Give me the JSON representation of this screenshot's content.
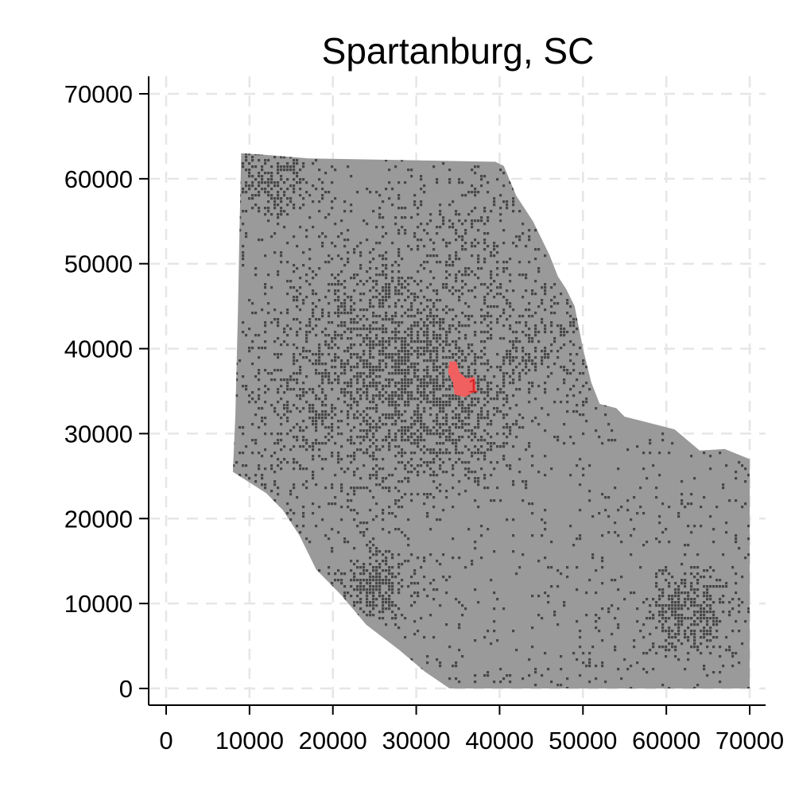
{
  "chart_data": {
    "type": "scatter",
    "title": "Spartanburg, SC",
    "xlabel": "",
    "ylabel": "",
    "xlim": [
      -2000,
      71000
    ],
    "ylim": [
      -2000,
      72000
    ],
    "x_ticks": [
      0,
      10000,
      20000,
      30000,
      40000,
      50000,
      60000,
      70000
    ],
    "y_ticks": [
      0,
      10000,
      20000,
      30000,
      40000,
      50000,
      60000,
      70000
    ],
    "x_tick_labels": [
      "0",
      "10000",
      "20000",
      "30000",
      "40000",
      "50000",
      "60000",
      "70000"
    ],
    "y_tick_labels": [
      "0",
      "10000",
      "20000",
      "30000",
      "40000",
      "50000",
      "60000",
      "70000"
    ],
    "grid": true,
    "grid_style": "dashed",
    "legend": "none",
    "series": [
      {
        "kind": "region-fill",
        "color": "#9a9a9a",
        "outline": [
          [
            9000,
            63000
          ],
          [
            12000,
            62800
          ],
          [
            17000,
            62400
          ],
          [
            39500,
            62000
          ],
          [
            40500,
            61500
          ],
          [
            42000,
            58000
          ],
          [
            44000,
            55000
          ],
          [
            46000,
            51000
          ],
          [
            47000,
            48500
          ],
          [
            48000,
            47000
          ],
          [
            49000,
            45000
          ],
          [
            50000,
            40000
          ],
          [
            51000,
            36000
          ],
          [
            52000,
            33500
          ],
          [
            54000,
            33000
          ],
          [
            55000,
            32000
          ],
          [
            57000,
            31500
          ],
          [
            59000,
            31000
          ],
          [
            61000,
            30500
          ],
          [
            64000,
            28000
          ],
          [
            67000,
            28200
          ],
          [
            70000,
            27000
          ],
          [
            70000,
            0
          ],
          [
            34000,
            0
          ],
          [
            31000,
            2000
          ],
          [
            28000,
            4500
          ],
          [
            24000,
            7500
          ],
          [
            21000,
            11000
          ],
          [
            18000,
            14000
          ],
          [
            16000,
            18000
          ],
          [
            14000,
            21000
          ],
          [
            12000,
            23000
          ],
          [
            8000,
            25500
          ],
          [
            8300,
            32000
          ],
          [
            8600,
            44000
          ],
          [
            8800,
            54000
          ]
        ]
      },
      {
        "kind": "density-points",
        "color": "#474747",
        "centers": [
          {
            "x": 32000,
            "y": 34000,
            "spread": 5500,
            "weight": 0.2
          },
          {
            "x": 25000,
            "y": 43000,
            "spread": 6000,
            "weight": 0.12
          },
          {
            "x": 13000,
            "y": 60000,
            "spread": 2500,
            "weight": 0.05
          },
          {
            "x": 63000,
            "y": 9000,
            "spread": 2500,
            "weight": 0.06
          },
          {
            "x": 25000,
            "y": 12500,
            "spread": 2200,
            "weight": 0.04
          },
          {
            "x": 18000,
            "y": 32000,
            "spread": 6000,
            "weight": 0.09
          },
          {
            "x": 45000,
            "y": 41000,
            "spread": 3500,
            "weight": 0.04
          },
          {
            "x": 36000,
            "y": 52000,
            "spread": 6000,
            "weight": 0.06
          }
        ],
        "background_density": 0.34
      },
      {
        "kind": "highlight",
        "name": "1",
        "color": "#f06060",
        "outline": [
          [
            34000,
            38500
          ],
          [
            34800,
            38500
          ],
          [
            35200,
            37200
          ],
          [
            36000,
            36500
          ],
          [
            37000,
            36700
          ],
          [
            37200,
            35000
          ],
          [
            35800,
            34300
          ],
          [
            34600,
            34600
          ],
          [
            34400,
            36000
          ],
          [
            33800,
            37200
          ]
        ],
        "label_position": [
          36200,
          35700
        ]
      }
    ]
  }
}
